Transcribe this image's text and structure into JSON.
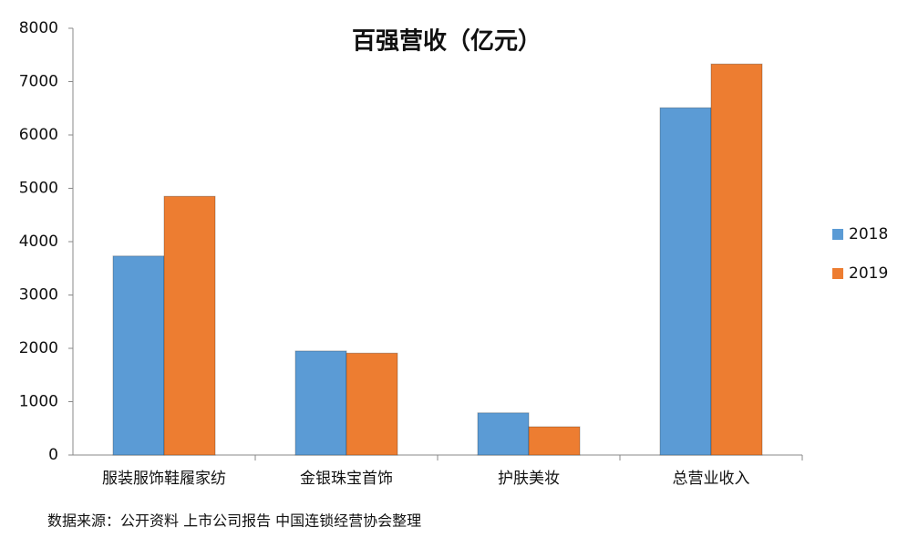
{
  "chart_data": {
    "type": "bar",
    "title": "百强营收（亿元）",
    "categories": [
      "服装服饰鞋履家纺",
      "金银珠宝首饰",
      "护肤美妆",
      "总营业收入"
    ],
    "series": [
      {
        "name": "2018",
        "color": "#5b9bd5",
        "values": [
          3730,
          1950,
          790,
          6510
        ]
      },
      {
        "name": "2019",
        "color": "#ed7d31",
        "values": [
          4850,
          1910,
          530,
          7330
        ]
      }
    ],
    "ylim": [
      0,
      8000
    ],
    "yticks": [
      0,
      1000,
      2000,
      3000,
      4000,
      5000,
      6000,
      7000,
      8000
    ],
    "grid": false,
    "legend": "right",
    "source": "数据来源：公开资料 上市公司报告 中国连锁经营协会整理"
  }
}
